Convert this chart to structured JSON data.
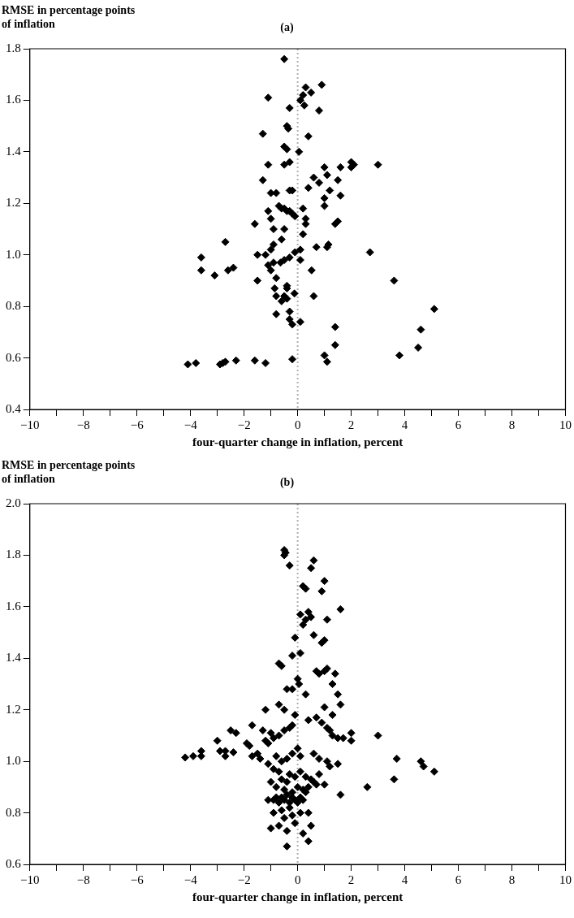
{
  "chart_data": [
    {
      "type": "scatter",
      "title": "(a)",
      "ylabel": "RMSE in percentage points of inflation",
      "xlabel": "four-quarter change in inflation, percent",
      "color": "#000000",
      "marker": "diamond",
      "xlim": [
        -10,
        10
      ],
      "ylim": [
        0.4,
        1.8
      ],
      "xticks": [
        -10,
        {
          "value": -9,
          "label": null
        },
        -8,
        {
          "value": -7,
          "label": null
        },
        -6,
        {
          "value": -5,
          "label": null
        },
        -4,
        {
          "value": -3,
          "label": null
        },
        -2,
        {
          "value": -1,
          "label": null
        },
        0,
        {
          "value": 1,
          "label": null
        },
        2,
        {
          "value": 3,
          "label": null
        },
        4,
        {
          "value": 5,
          "label": null
        },
        6,
        {
          "value": 7,
          "label": null
        },
        8,
        {
          "value": 9,
          "label": null
        },
        10
      ],
      "yticks": [
        {
          "value": 0.4,
          "label": "0.4"
        },
        {
          "value": 0.6,
          "label": "0.6"
        },
        {
          "value": 0.8,
          "label": "0.8"
        },
        {
          "value": 1.0,
          "label": "1.0"
        },
        {
          "value": 1.2,
          "label": "1.2"
        },
        {
          "value": 1.4,
          "label": "1.4"
        },
        {
          "value": 1.6,
          "label": "1.6"
        },
        {
          "value": 1.8,
          "label": "1.8"
        }
      ],
      "ref_lines": [
        {
          "axis": "x",
          "value": 0,
          "color": "#b0b0b0",
          "line_style": "dotted"
        }
      ],
      "x": [
        -0.5,
        0.3,
        0.9,
        0.2,
        -1.1,
        0.1,
        0.25,
        0.8,
        0.5,
        -0.3,
        -0.4,
        -0.35,
        -1.3,
        0.4,
        -0.5,
        -0.4,
        0.05,
        -1.1,
        -0.5,
        -0.3,
        1.0,
        1.6,
        2.0,
        2.1,
        2.0,
        3.0,
        1.1,
        1.5,
        -1.3,
        0.6,
        0.8,
        1.6,
        1.2,
        1.0,
        -1.0,
        -0.8,
        0.4,
        -0.3,
        -0.2,
        1.0,
        0.2,
        -0.7,
        -0.6,
        -0.5,
        -0.4,
        -0.3,
        -1.1,
        -0.1,
        -0.2,
        0.3,
        0.3,
        1.5,
        1.4,
        -1.6,
        -1.0,
        -0.9,
        -0.5,
        0.2,
        -0.6,
        -0.9,
        -1.0,
        0.7,
        1.1,
        1.15,
        0.1,
        -0.1,
        -3.6,
        -3.6,
        -2.7,
        -1.5,
        -1.2,
        -1.1,
        -0.9,
        -0.5,
        -0.3,
        0.1,
        -3.1,
        -2.6,
        -2.4,
        -1.5,
        2.7,
        3.6,
        -0.8,
        -0.6,
        -0.8,
        -0.4,
        -0.3,
        -0.2,
        -0.3,
        0.1,
        0.6,
        -0.64,
        -1.0,
        -0.8,
        -0.86,
        -0.4,
        -0.5,
        -0.4,
        -0.12,
        0.52,
        -4.1,
        -3.8,
        -2.9,
        -2.8,
        -2.7,
        -2.3,
        -1.6,
        -1.2,
        -0.2,
        1.0,
        1.1,
        1.4,
        1.4,
        3.8,
        4.5,
        4.6,
        5.1
      ],
      "values": [
        1.76,
        1.65,
        1.66,
        1.62,
        1.61,
        1.6,
        1.58,
        1.56,
        1.63,
        1.57,
        1.5,
        1.49,
        1.47,
        1.46,
        1.42,
        1.41,
        1.4,
        1.35,
        1.35,
        1.36,
        1.34,
        1.34,
        1.36,
        1.35,
        1.34,
        1.35,
        1.31,
        1.29,
        1.29,
        1.3,
        1.28,
        1.23,
        1.25,
        1.22,
        1.24,
        1.24,
        1.26,
        1.25,
        1.25,
        1.19,
        1.18,
        1.19,
        1.18,
        1.18,
        1.17,
        1.17,
        1.17,
        1.15,
        1.16,
        1.14,
        1.12,
        1.13,
        1.12,
        1.12,
        1.14,
        1.1,
        1.1,
        1.08,
        1.06,
        1.04,
        1.02,
        1.03,
        1.03,
        1.04,
        1.02,
        1.01,
        0.99,
        0.94,
        1.05,
        1.0,
        1.0,
        0.96,
        0.97,
        0.98,
        0.99,
        0.98,
        0.92,
        0.94,
        0.95,
        0.9,
        1.01,
        0.9,
        0.84,
        0.82,
        0.77,
        0.87,
        0.78,
        0.73,
        0.75,
        0.74,
        0.84,
        0.97,
        0.94,
        0.91,
        0.87,
        0.88,
        0.84,
        0.83,
        0.85,
        0.94,
        0.575,
        0.58,
        0.575,
        0.58,
        0.585,
        0.59,
        0.59,
        0.58,
        0.595,
        0.61,
        0.585,
        0.65,
        0.72,
        0.61,
        0.64,
        0.71,
        0.79
      ]
    },
    {
      "type": "scatter",
      "title": "(b)",
      "ylabel": "RMSE in percentage points of inflation",
      "xlabel": "four-quarter change in inflation, percent",
      "color": "#000000",
      "marker": "diamond",
      "xlim": [
        -10,
        10
      ],
      "ylim": [
        0.6,
        2.0
      ],
      "xticks": [
        -10,
        {
          "value": -9,
          "label": null
        },
        -8,
        {
          "value": -7,
          "label": null
        },
        -6,
        {
          "value": -5,
          "label": null
        },
        -4,
        {
          "value": -3,
          "label": null
        },
        -2,
        {
          "value": -1,
          "label": null
        },
        0,
        {
          "value": 1,
          "label": null
        },
        2,
        {
          "value": 3,
          "label": null
        },
        4,
        {
          "value": 5,
          "label": null
        },
        6,
        {
          "value": 7,
          "label": null
        },
        8,
        {
          "value": 9,
          "label": null
        },
        10
      ],
      "yticks": [
        {
          "value": 0.6,
          "label": "0.6"
        },
        {
          "value": 0.8,
          "label": "0.8"
        },
        {
          "value": 1.0,
          "label": "1.0"
        },
        {
          "value": 1.2,
          "label": "1.2"
        },
        {
          "value": 1.4,
          "label": "1.4"
        },
        {
          "value": 1.6,
          "label": "1.6"
        },
        {
          "value": 1.8,
          "label": "1.8"
        },
        {
          "value": 2.0,
          "label": "2.0"
        }
      ],
      "ref_lines": [
        {
          "axis": "x",
          "value": 0,
          "color": "#b0b0b0",
          "line_style": "dotted"
        }
      ],
      "x": [
        -0.5,
        -0.45,
        -0.5,
        -0.3,
        0.6,
        0.5,
        1.0,
        0.2,
        0.3,
        0.9,
        1.6,
        0.1,
        0.4,
        0.5,
        0.3,
        0.2,
        1.1,
        0.9,
        -0.1,
        0.6,
        1.0,
        -0.7,
        -0.6,
        -0.2,
        0.1,
        0.7,
        0.8,
        1.0,
        1.1,
        1.4,
        1.3,
        0.0,
        0.05,
        -0.4,
        -0.2,
        0.3,
        1.5,
        -1.2,
        -0.7,
        -0.5,
        1.0,
        1.6,
        1.3,
        -0.1,
        0.4,
        0.7,
        0.9,
        1.1,
        1.2,
        1.3,
        1.5,
        2.0,
        2.0,
        3.0,
        1.7,
        -2.5,
        -2.3,
        -3.0,
        -1.7,
        -1.3,
        -1.0,
        -0.9,
        -0.7,
        -0.5,
        -0.3,
        -0.2,
        -1.9,
        -1.8,
        -1.2,
        -1.1,
        -4.2,
        -3.9,
        -3.6,
        -3.6,
        -2.9,
        -2.7,
        -2.7,
        -2.4,
        -1.7,
        -1.5,
        -1.4,
        -1.1,
        -0.8,
        -0.6,
        -0.4,
        -0.2,
        0.0,
        0.1,
        0.6,
        0.8,
        1.1,
        1.2,
        1.5,
        3.7,
        4.6,
        4.7,
        5.1,
        3.6,
        2.6,
        1.6,
        -0.9,
        -0.7,
        -0.6,
        -0.4,
        -0.3,
        -0.1,
        0.1,
        0.3,
        0.5,
        0.7,
        0.8,
        1.0,
        -1.0,
        -0.8,
        -0.5,
        -0.2,
        0.0,
        0.2,
        0.4,
        0.6,
        -1.1,
        -0.9,
        -0.8,
        -0.7,
        -0.6,
        -0.5,
        -0.4,
        -0.3,
        -0.2,
        -0.1,
        0.0,
        0.1,
        0.2,
        0.3,
        -0.9,
        -0.5,
        -0.2,
        0.1,
        0.4,
        -1.0,
        -0.7,
        -0.4,
        -0.1,
        0.2,
        0.5,
        -0.4,
        0.4,
        -0.6,
        -0.3
      ],
      "values": [
        1.82,
        1.81,
        1.8,
        1.76,
        1.78,
        1.75,
        1.7,
        1.68,
        1.67,
        1.66,
        1.59,
        1.57,
        1.58,
        1.56,
        1.55,
        1.53,
        1.55,
        1.46,
        1.48,
        1.49,
        1.47,
        1.38,
        1.37,
        1.41,
        1.42,
        1.35,
        1.34,
        1.35,
        1.36,
        1.34,
        1.3,
        1.32,
        1.3,
        1.28,
        1.28,
        1.26,
        1.26,
        1.2,
        1.22,
        1.2,
        1.21,
        1.22,
        1.18,
        1.18,
        1.16,
        1.17,
        1.15,
        1.13,
        1.12,
        1.1,
        1.09,
        1.11,
        1.08,
        1.1,
        1.09,
        1.12,
        1.11,
        1.08,
        1.14,
        1.12,
        1.11,
        1.09,
        1.1,
        1.12,
        1.13,
        1.14,
        1.07,
        1.06,
        1.08,
        1.07,
        1.015,
        1.02,
        1.04,
        1.02,
        1.04,
        1.04,
        1.02,
        1.035,
        1.02,
        1.03,
        1.01,
        0.99,
        1.02,
        1.0,
        1.01,
        1.03,
        1.05,
        1.02,
        1.03,
        1.01,
        1.0,
        0.98,
        0.99,
        1.01,
        1.0,
        0.98,
        0.96,
        0.93,
        0.9,
        0.87,
        0.97,
        0.96,
        0.93,
        0.92,
        0.95,
        0.94,
        0.96,
        0.94,
        0.93,
        0.91,
        0.95,
        0.91,
        0.92,
        0.9,
        0.89,
        0.88,
        0.9,
        0.89,
        0.9,
        0.92,
        0.85,
        0.85,
        0.86,
        0.84,
        0.86,
        0.85,
        0.87,
        0.84,
        0.86,
        0.85,
        0.84,
        0.86,
        0.85,
        0.88,
        0.8,
        0.78,
        0.79,
        0.8,
        0.8,
        0.74,
        0.75,
        0.73,
        0.76,
        0.72,
        0.75,
        0.67,
        0.69,
        0.81,
        0.82
      ]
    }
  ]
}
